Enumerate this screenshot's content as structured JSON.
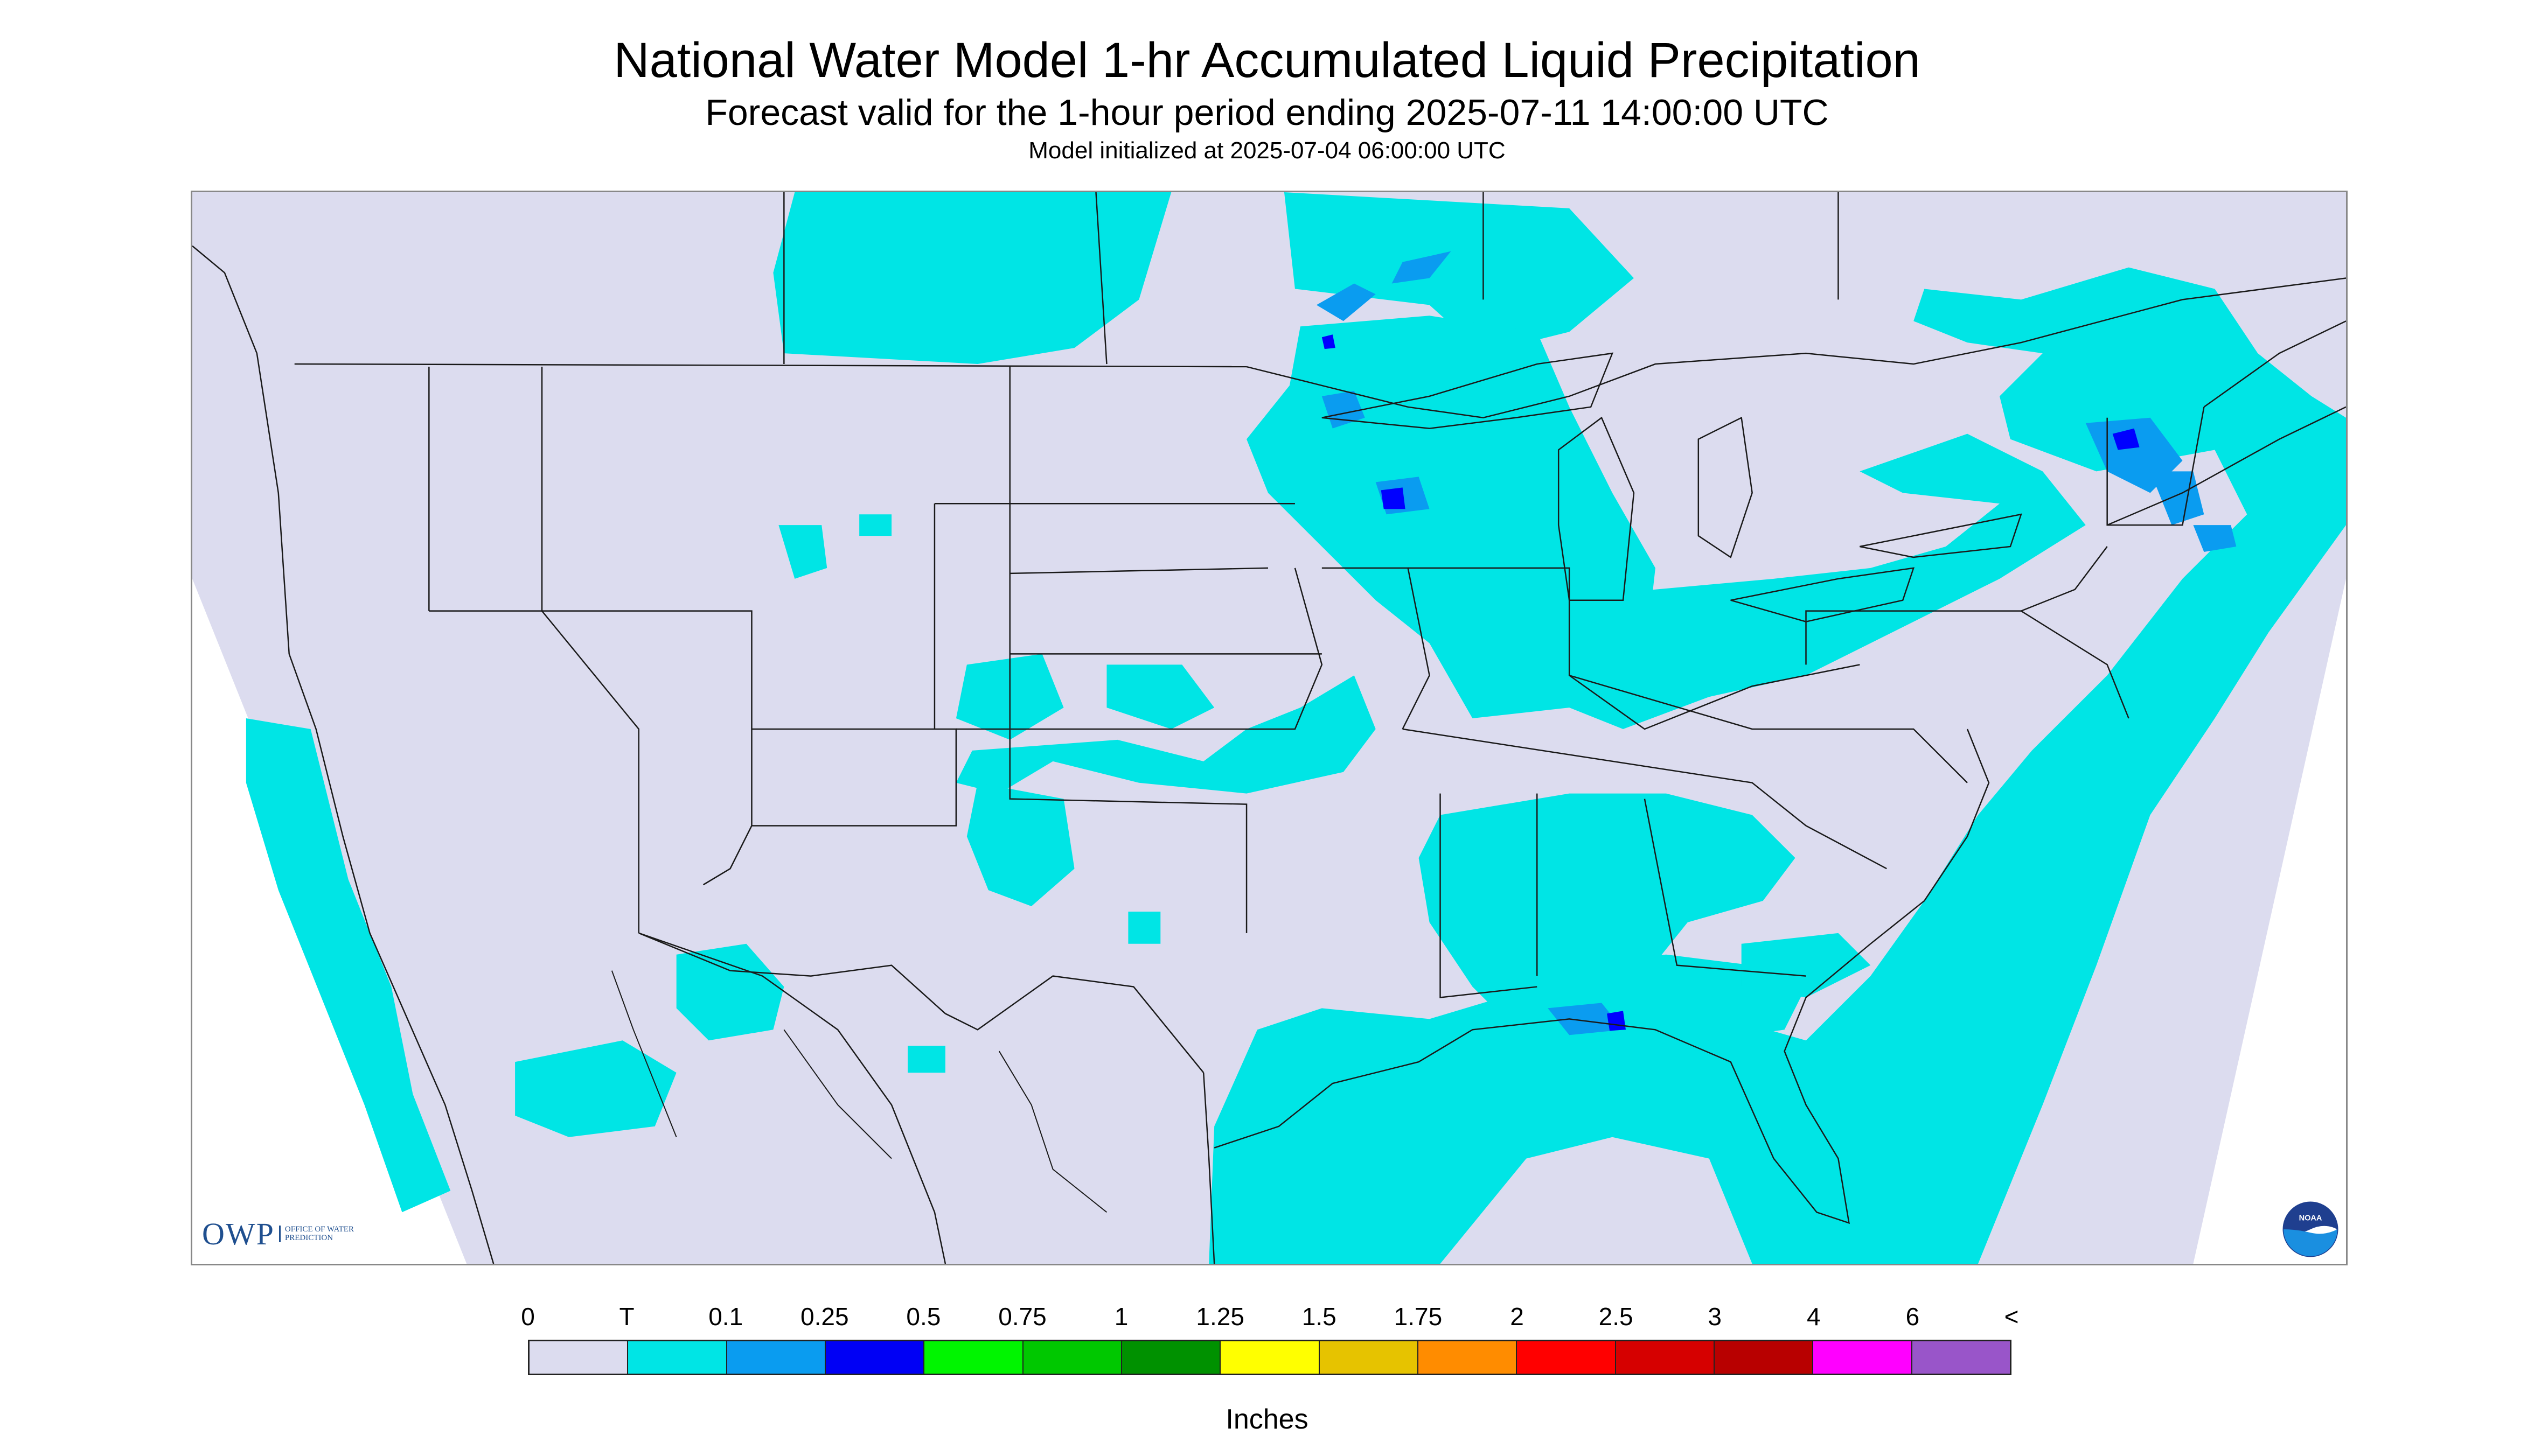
{
  "header": {
    "title": "National Water Model 1-hr Accumulated Liquid Precipitation",
    "subtitle": "Forecast valid for the 1-hour period ending 2025-07-11 14:00:00 UTC",
    "init": "Model initialized at 2025-07-04 06:00:00 UTC"
  },
  "logos": {
    "owp": "OWP",
    "owp_sub": "OFFICE OF WATER PREDICTION",
    "noaa": "NOAA"
  },
  "map": {
    "background_color": "#dcdcef",
    "precip_trace_color": "#00e5e5",
    "precip_light_color": "#0a9cf0",
    "precip_mid_color": "#0000ff",
    "border_color": "#1a1a1a"
  },
  "legend": {
    "labels": [
      "0",
      "T",
      "0.1",
      "0.25",
      "0.5",
      "0.75",
      "1",
      "1.25",
      "1.5",
      "1.75",
      "2",
      "2.5",
      "3",
      "4",
      "6",
      "<"
    ],
    "colors": [
      "#dcdcef",
      "#00e5e5",
      "#0a9cf0",
      "#0000f5",
      "#00f500",
      "#00c800",
      "#009100",
      "#ffff00",
      "#e6c300",
      "#ff8c00",
      "#ff0000",
      "#d60000",
      "#b80000",
      "#ff00ff",
      "#9955c9"
    ],
    "unit": "Inches"
  }
}
